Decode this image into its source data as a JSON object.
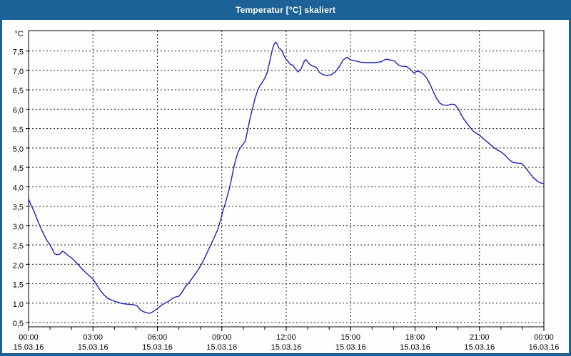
{
  "window": {
    "title": "Temperatur [°C] skaliert",
    "titlebar_color": "#1d6296",
    "border_color": "#1d6296",
    "background": "#fdfefd"
  },
  "chart_data": {
    "type": "line",
    "title": "Temperatur [°C] skaliert",
    "grid": "dashed",
    "legend": "none",
    "line_color": "#2020b8",
    "grid_color": "#1a1a1a",
    "text_color": "#000000",
    "x_axis": {
      "range_hours": [
        0,
        24
      ],
      "major_tick_every_hours": 3,
      "minor_tick_every_hours": 1,
      "tick_labels": [
        {
          "hour": 0,
          "time": "00:00",
          "date": "15.03.16"
        },
        {
          "hour": 3,
          "time": "03:00",
          "date": "15.03.16"
        },
        {
          "hour": 6,
          "time": "06:00",
          "date": "15.03.16"
        },
        {
          "hour": 9,
          "time": "09:00",
          "date": "15.03.16"
        },
        {
          "hour": 12,
          "time": "12:00",
          "date": "15.03.16"
        },
        {
          "hour": 15,
          "time": "15:00",
          "date": "15.03.16"
        },
        {
          "hour": 18,
          "time": "18:00",
          "date": "15.03.16"
        },
        {
          "hour": 21,
          "time": "21:00",
          "date": "15.03.16"
        },
        {
          "hour": 24,
          "time": "00:00",
          "date": "16.03.16"
        }
      ]
    },
    "y_axis": {
      "unit": "°C",
      "grid_min": 0.5,
      "grid_max": 7.5,
      "step": 0.5,
      "axis_value_at_top": 8.0,
      "axis_value_at_bottom": 0.39,
      "tick_values": [
        0.5,
        1.0,
        1.5,
        2.0,
        2.5,
        3.0,
        3.5,
        4.0,
        4.5,
        5.0,
        5.5,
        6.0,
        6.5,
        7.0,
        7.5
      ],
      "tick_labels": [
        "0,5",
        "1,0",
        "1,5",
        "2,0",
        "2,5",
        "3,0",
        "3,5",
        "4,0",
        "4,5",
        "5,0",
        "5,5",
        "6,0",
        "6,5",
        "7,0",
        "7,5"
      ]
    },
    "series": [
      {
        "name": "Temperatur [°C]",
        "points_hours_celsius": [
          [
            0.0,
            3.69
          ],
          [
            0.12,
            3.52
          ],
          [
            0.25,
            3.38
          ],
          [
            0.4,
            3.16
          ],
          [
            0.55,
            2.96
          ],
          [
            0.7,
            2.78
          ],
          [
            0.85,
            2.62
          ],
          [
            1.0,
            2.5
          ],
          [
            1.1,
            2.4
          ],
          [
            1.2,
            2.28
          ],
          [
            1.3,
            2.25
          ],
          [
            1.45,
            2.26
          ],
          [
            1.58,
            2.34
          ],
          [
            1.7,
            2.3
          ],
          [
            1.85,
            2.22
          ],
          [
            2.0,
            2.17
          ],
          [
            2.2,
            2.06
          ],
          [
            2.4,
            1.94
          ],
          [
            2.6,
            1.82
          ],
          [
            2.8,
            1.72
          ],
          [
            3.0,
            1.62
          ],
          [
            3.2,
            1.45
          ],
          [
            3.35,
            1.32
          ],
          [
            3.5,
            1.22
          ],
          [
            3.7,
            1.12
          ],
          [
            3.9,
            1.07
          ],
          [
            4.1,
            1.03
          ],
          [
            4.3,
            1.0
          ],
          [
            4.5,
            0.98
          ],
          [
            4.7,
            0.97
          ],
          [
            4.9,
            0.96
          ],
          [
            5.05,
            0.93
          ],
          [
            5.2,
            0.83
          ],
          [
            5.35,
            0.78
          ],
          [
            5.5,
            0.75
          ],
          [
            5.65,
            0.74
          ],
          [
            5.8,
            0.78
          ],
          [
            6.0,
            0.86
          ],
          [
            6.2,
            0.95
          ],
          [
            6.35,
            1.0
          ],
          [
            6.5,
            1.04
          ],
          [
            6.65,
            1.1
          ],
          [
            6.8,
            1.15
          ],
          [
            7.0,
            1.18
          ],
          [
            7.15,
            1.28
          ],
          [
            7.3,
            1.42
          ],
          [
            7.5,
            1.55
          ],
          [
            7.7,
            1.7
          ],
          [
            7.9,
            1.86
          ],
          [
            8.1,
            2.05
          ],
          [
            8.3,
            2.28
          ],
          [
            8.5,
            2.52
          ],
          [
            8.65,
            2.7
          ],
          [
            8.8,
            2.88
          ],
          [
            8.95,
            3.15
          ],
          [
            9.05,
            3.38
          ],
          [
            9.15,
            3.55
          ],
          [
            9.25,
            3.75
          ],
          [
            9.35,
            3.95
          ],
          [
            9.45,
            4.2
          ],
          [
            9.55,
            4.48
          ],
          [
            9.65,
            4.7
          ],
          [
            9.75,
            4.88
          ],
          [
            9.85,
            5.0
          ],
          [
            10.0,
            5.1
          ],
          [
            10.1,
            5.18
          ],
          [
            10.2,
            5.45
          ],
          [
            10.3,
            5.72
          ],
          [
            10.42,
            6.0
          ],
          [
            10.55,
            6.28
          ],
          [
            10.68,
            6.5
          ],
          [
            10.8,
            6.63
          ],
          [
            10.92,
            6.72
          ],
          [
            11.0,
            6.8
          ],
          [
            11.1,
            6.92
          ],
          [
            11.18,
            7.1
          ],
          [
            11.26,
            7.3
          ],
          [
            11.35,
            7.52
          ],
          [
            11.42,
            7.65
          ],
          [
            11.5,
            7.73
          ],
          [
            11.58,
            7.68
          ],
          [
            11.65,
            7.58
          ],
          [
            11.72,
            7.56
          ],
          [
            11.8,
            7.5
          ],
          [
            11.88,
            7.4
          ],
          [
            11.95,
            7.32
          ],
          [
            12.0,
            7.29
          ],
          [
            12.1,
            7.22
          ],
          [
            12.2,
            7.15
          ],
          [
            12.3,
            7.14
          ],
          [
            12.42,
            7.05
          ],
          [
            12.55,
            6.96
          ],
          [
            12.7,
            7.05
          ],
          [
            12.85,
            7.25
          ],
          [
            12.92,
            7.28
          ],
          [
            13.05,
            7.18
          ],
          [
            13.2,
            7.12
          ],
          [
            13.4,
            7.08
          ],
          [
            13.55,
            6.95
          ],
          [
            13.7,
            6.89
          ],
          [
            13.9,
            6.87
          ],
          [
            14.1,
            6.89
          ],
          [
            14.3,
            6.97
          ],
          [
            14.5,
            7.12
          ],
          [
            14.65,
            7.27
          ],
          [
            14.85,
            7.34
          ],
          [
            15.0,
            7.27
          ],
          [
            15.2,
            7.25
          ],
          [
            15.5,
            7.21
          ],
          [
            15.8,
            7.2
          ],
          [
            16.1,
            7.2
          ],
          [
            16.4,
            7.22
          ],
          [
            16.65,
            7.29
          ],
          [
            16.85,
            7.27
          ],
          [
            17.05,
            7.24
          ],
          [
            17.2,
            7.15
          ],
          [
            17.35,
            7.11
          ],
          [
            17.6,
            7.1
          ],
          [
            17.8,
            7.02
          ],
          [
            17.95,
            6.93
          ],
          [
            18.08,
            6.98
          ],
          [
            18.25,
            6.96
          ],
          [
            18.4,
            6.9
          ],
          [
            18.55,
            6.8
          ],
          [
            18.7,
            6.64
          ],
          [
            18.85,
            6.45
          ],
          [
            19.0,
            6.28
          ],
          [
            19.15,
            6.16
          ],
          [
            19.3,
            6.11
          ],
          [
            19.5,
            6.1
          ],
          [
            19.7,
            6.13
          ],
          [
            19.85,
            6.12
          ],
          [
            20.0,
            6.02
          ],
          [
            20.15,
            5.86
          ],
          [
            20.3,
            5.72
          ],
          [
            20.5,
            5.58
          ],
          [
            20.7,
            5.44
          ],
          [
            20.85,
            5.38
          ],
          [
            21.0,
            5.33
          ],
          [
            21.2,
            5.23
          ],
          [
            21.4,
            5.14
          ],
          [
            21.6,
            5.04
          ],
          [
            21.8,
            4.96
          ],
          [
            22.0,
            4.9
          ],
          [
            22.2,
            4.81
          ],
          [
            22.4,
            4.69
          ],
          [
            22.55,
            4.63
          ],
          [
            22.75,
            4.61
          ],
          [
            22.95,
            4.6
          ],
          [
            23.1,
            4.53
          ],
          [
            23.3,
            4.38
          ],
          [
            23.5,
            4.24
          ],
          [
            23.7,
            4.14
          ],
          [
            23.85,
            4.1
          ],
          [
            24.0,
            4.08
          ]
        ]
      }
    ]
  }
}
